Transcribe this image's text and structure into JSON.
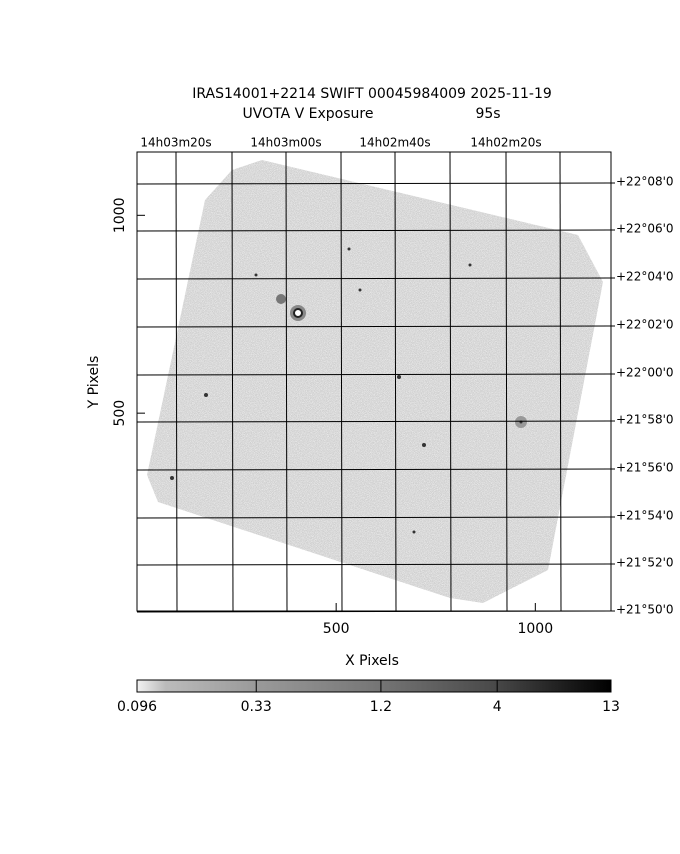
{
  "chart_data": {
    "type": "image",
    "title": "IRAS14001+2214 SWIFT 00045984009 2025-11-19",
    "subtitle": "UVOTA V Exposure",
    "exposure": "95s",
    "x_label": "X Pixels",
    "y_label": "Y Pixels",
    "xlim": [
      0,
      1190
    ],
    "ylim": [
      0,
      1160
    ],
    "xticks": [
      500,
      1000
    ],
    "yticks": [
      500,
      1000
    ],
    "ra_ticks": [
      "14h03m20s",
      "14h03m00s",
      "14h02m40s",
      "14h02m20s"
    ],
    "dec_ticks": [
      "+22°08'0",
      "+22°06'0",
      "+22°04'0",
      "+22°02'0",
      "+22°00'0",
      "+21°58'0",
      "+21°56'0",
      "+21°54'0",
      "+21°52'0",
      "+21°50'0"
    ],
    "colorbar": {
      "lim": [
        0.096,
        13
      ],
      "ticks": [
        0.096,
        0.33,
        1.2,
        4,
        13
      ],
      "log": true
    }
  }
}
